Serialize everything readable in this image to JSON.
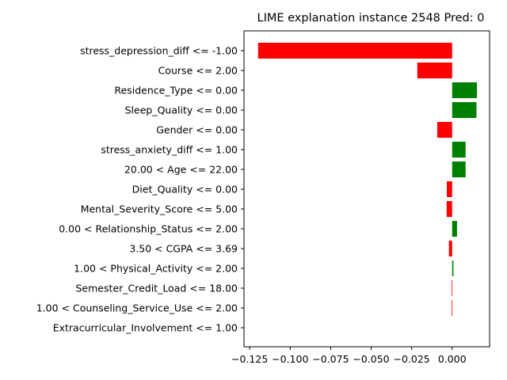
{
  "chart_data": {
    "type": "bar",
    "orientation": "horizontal",
    "title": "LIME explanation instance 2548 Pred: 0",
    "xlabel": "",
    "ylabel": "",
    "categories": [
      "stress_depression_diff <= -1.00",
      "Course <= 2.00",
      "Residence_Type <= 0.00",
      "Sleep_Quality <= 0.00",
      "Gender <= 0.00",
      "stress_anxiety_diff <= 1.00",
      "20.00 < Age <= 22.00",
      "Diet_Quality <= 0.00",
      "Mental_Severity_Score <= 5.00",
      "0.00 < Relationship_Status <= 2.00",
      "3.50 < CGPA <= 3.69",
      "1.00 < Physical_Activity <= 2.00",
      "Semester_Credit_Load <= 18.00",
      "1.00 < Counseling_Service_Use <= 2.00",
      "Extracurricular_Involvement <= 1.00"
    ],
    "values": [
      -0.1198,
      -0.0215,
      0.0153,
      0.015,
      -0.0092,
      0.0083,
      0.0083,
      -0.0033,
      -0.0034,
      0.003,
      -0.002,
      0.0008,
      -0.0004,
      -0.0004,
      0.0
    ],
    "xlim": [
      -0.1285,
      0.0231
    ],
    "xticks": [
      -0.125,
      -0.1,
      -0.075,
      -0.05,
      -0.025,
      0.0
    ],
    "xtick_labels": [
      "−0.125",
      "−0.100",
      "−0.075",
      "−0.050",
      "−0.025",
      "0.000"
    ],
    "grid": false,
    "legend": "none",
    "colors": {
      "positive": "#008000",
      "negative": "#ff0000"
    }
  }
}
